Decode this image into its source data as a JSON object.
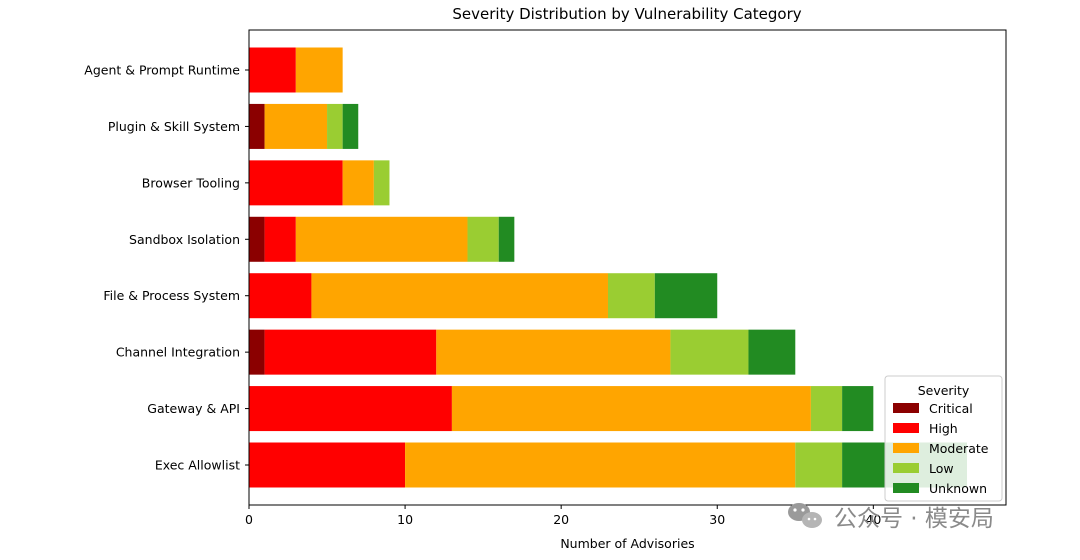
{
  "chart_data": {
    "type": "bar",
    "orientation": "horizontal",
    "stacked": true,
    "title": "Severity Distribution by Vulnerability Category",
    "xlabel": "Number of Advisories",
    "ylabel": "",
    "xlim": [
      0,
      48.5
    ],
    "xticks": [
      0,
      10,
      20,
      30,
      40
    ],
    "grid": false,
    "categories": [
      "Agent & Prompt Runtime",
      "Plugin & Skill System",
      "Browser Tooling",
      "Sandbox Isolation",
      "File & Process System",
      "Channel Integration",
      "Gateway & API",
      "Exec Allowlist"
    ],
    "series": [
      {
        "name": "Critical",
        "color": "#8b0000",
        "values": [
          0,
          1,
          0,
          1,
          0,
          1,
          0,
          0
        ]
      },
      {
        "name": "High",
        "color": "#ff0000",
        "values": [
          3,
          0,
          6,
          2,
          4,
          11,
          13,
          10
        ]
      },
      {
        "name": "Moderate",
        "color": "#ffa500",
        "values": [
          3,
          4,
          2,
          11,
          19,
          15,
          23,
          25
        ]
      },
      {
        "name": "Low",
        "color": "#9acd32",
        "values": [
          0,
          1,
          1,
          2,
          3,
          5,
          2,
          3
        ]
      },
      {
        "name": "Unknown",
        "color": "#228b22",
        "values": [
          0,
          1,
          0,
          1,
          4,
          3,
          2,
          8
        ]
      }
    ],
    "legend": {
      "title": "Severity",
      "position": "lower-right"
    }
  },
  "watermark": {
    "text": "公众号 · 模安局",
    "icon": "wechat-icon"
  }
}
